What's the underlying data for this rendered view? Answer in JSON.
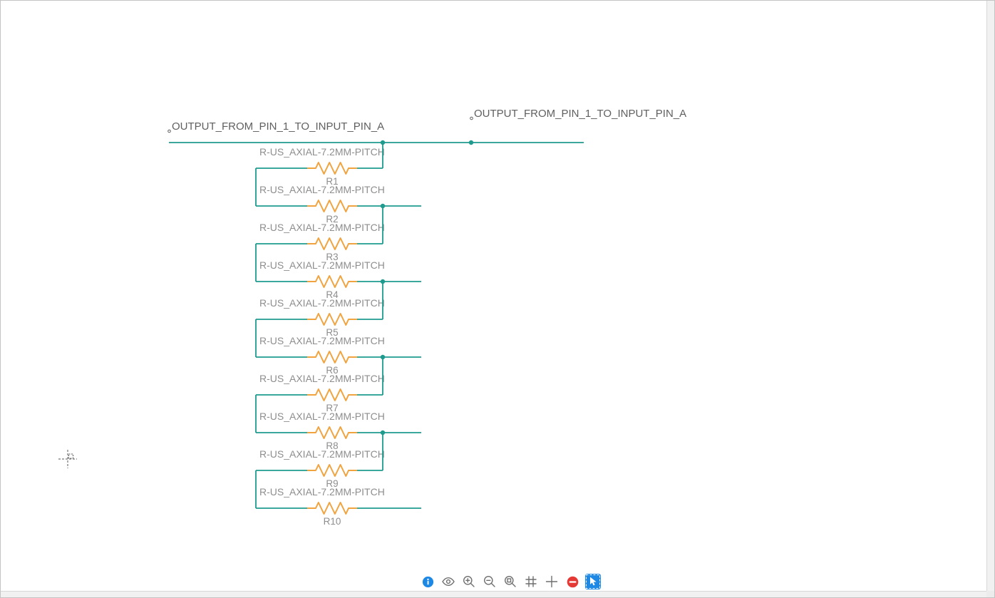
{
  "net_labels": [
    "OUTPUT_FROM_PIN_1_TO_INPUT_PIN_A",
    "OUTPUT_FROM_PIN_1_TO_INPUT_PIN_A"
  ],
  "components": [
    {
      "designator": "R1",
      "name": "R-US_AXIAL-7.2MM-PITCH"
    },
    {
      "designator": "R2",
      "name": "R-US_AXIAL-7.2MM-PITCH"
    },
    {
      "designator": "R3",
      "name": "R-US_AXIAL-7.2MM-PITCH"
    },
    {
      "designator": "R4",
      "name": "R-US_AXIAL-7.2MM-PITCH"
    },
    {
      "designator": "R5",
      "name": "R-US_AXIAL-7.2MM-PITCH"
    },
    {
      "designator": "R6",
      "name": "R-US_AXIAL-7.2MM-PITCH"
    },
    {
      "designator": "R7",
      "name": "R-US_AXIAL-7.2MM-PITCH"
    },
    {
      "designator": "R8",
      "name": "R-US_AXIAL-7.2MM-PITCH"
    },
    {
      "designator": "R9",
      "name": "R-US_AXIAL-7.2MM-PITCH"
    },
    {
      "designator": "R10",
      "name": "R-US_AXIAL-7.2MM-PITCH"
    }
  ],
  "toolbar": {
    "icons": [
      "info-icon",
      "eye-icon",
      "zoom-in-icon",
      "zoom-out-icon",
      "zoom-window-icon",
      "grid-icon",
      "crosshair-icon",
      "no-entry-icon",
      "cursor-tool-icon"
    ],
    "active_icon": "cursor-tool-icon"
  },
  "colors": {
    "wire": "#1E9B8E",
    "component_body": "#F0A33F",
    "component_label": "#8E8E8E",
    "net_label": "#5F5F5F",
    "toolbar_icon": "#6F6F6F",
    "info_blue": "#1E88E5",
    "danger_red": "#E53935",
    "active_tool_bg": "#1E88E5",
    "scrollbar_track": "#F1F1F1"
  }
}
